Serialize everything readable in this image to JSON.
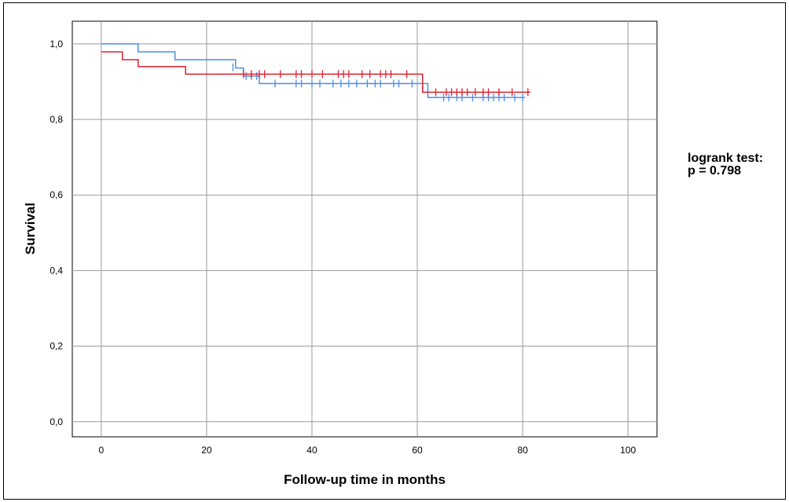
{
  "chart_data": {
    "type": "line",
    "step": true,
    "xlabel": "Follow-up time in months",
    "ylabel": "Survival",
    "xlim": [
      -5.5,
      105.5
    ],
    "ylim": [
      -0.04,
      1.06
    ],
    "xticks": [
      0,
      20,
      40,
      60,
      80,
      100
    ],
    "yticks": [
      0.0,
      0.2,
      0.4,
      0.6,
      0.8,
      1.0
    ],
    "xtick_labels": [
      "0",
      "20",
      "40",
      "60",
      "80",
      "100"
    ],
    "ytick_labels": [
      "0,0",
      "0,2",
      "0,4",
      "0,6",
      "0,8",
      "1,0"
    ],
    "grid": true,
    "annotation": [
      "logrank test:",
      "p = 0.798"
    ],
    "series": [
      {
        "color": "#4a90e2",
        "steps": [
          [
            0,
            1.0
          ],
          [
            7,
            0.979
          ],
          [
            14,
            0.958
          ],
          [
            20.5,
            0.958
          ],
          [
            22,
            0.958
          ],
          [
            25.5,
            0.936
          ],
          [
            27,
            0.915
          ],
          [
            30,
            0.895
          ],
          [
            62,
            0.858
          ],
          [
            80.5,
            0.858
          ]
        ],
        "censored": [
          [
            25,
            0.938
          ],
          [
            27.5,
            0.915
          ],
          [
            28.5,
            0.915
          ],
          [
            29.5,
            0.915
          ],
          [
            33,
            0.895
          ],
          [
            37,
            0.895
          ],
          [
            38,
            0.895
          ],
          [
            40,
            0.895
          ],
          [
            41.5,
            0.895
          ],
          [
            44,
            0.895
          ],
          [
            45.5,
            0.895
          ],
          [
            47,
            0.895
          ],
          [
            48.5,
            0.895
          ],
          [
            50.5,
            0.895
          ],
          [
            52,
            0.895
          ],
          [
            53,
            0.895
          ],
          [
            55.5,
            0.895
          ],
          [
            56.5,
            0.895
          ],
          [
            59,
            0.895
          ],
          [
            65,
            0.858
          ],
          [
            66,
            0.858
          ],
          [
            67.5,
            0.858
          ],
          [
            68.5,
            0.858
          ],
          [
            70.5,
            0.858
          ],
          [
            72.5,
            0.858
          ],
          [
            73.5,
            0.858
          ],
          [
            74.5,
            0.858
          ],
          [
            75.5,
            0.858
          ],
          [
            76.5,
            0.858
          ],
          [
            78.5,
            0.858
          ],
          [
            80,
            0.858
          ]
        ]
      },
      {
        "color": "#e0212e",
        "steps": [
          [
            0,
            0.979
          ],
          [
            4,
            0.958
          ],
          [
            7,
            0.94
          ],
          [
            16,
            0.92
          ],
          [
            61,
            0.872
          ],
          [
            81.5,
            0.872
          ]
        ],
        "censored": [
          [
            27,
            0.92
          ],
          [
            28.5,
            0.92
          ],
          [
            30,
            0.92
          ],
          [
            31,
            0.92
          ],
          [
            34,
            0.92
          ],
          [
            37,
            0.92
          ],
          [
            38,
            0.92
          ],
          [
            40,
            0.92
          ],
          [
            42,
            0.92
          ],
          [
            45,
            0.92
          ],
          [
            46,
            0.92
          ],
          [
            47,
            0.92
          ],
          [
            49.5,
            0.92
          ],
          [
            51,
            0.92
          ],
          [
            53,
            0.92
          ],
          [
            54,
            0.92
          ],
          [
            55,
            0.92
          ],
          [
            58,
            0.92
          ],
          [
            63.5,
            0.872
          ],
          [
            65.5,
            0.872
          ],
          [
            66.5,
            0.872
          ],
          [
            67.5,
            0.872
          ],
          [
            68.5,
            0.872
          ],
          [
            69.5,
            0.872
          ],
          [
            71,
            0.872
          ],
          [
            72.5,
            0.872
          ],
          [
            73.5,
            0.872
          ],
          [
            75.5,
            0.872
          ],
          [
            78,
            0.872
          ],
          [
            81,
            0.872
          ]
        ]
      }
    ]
  }
}
